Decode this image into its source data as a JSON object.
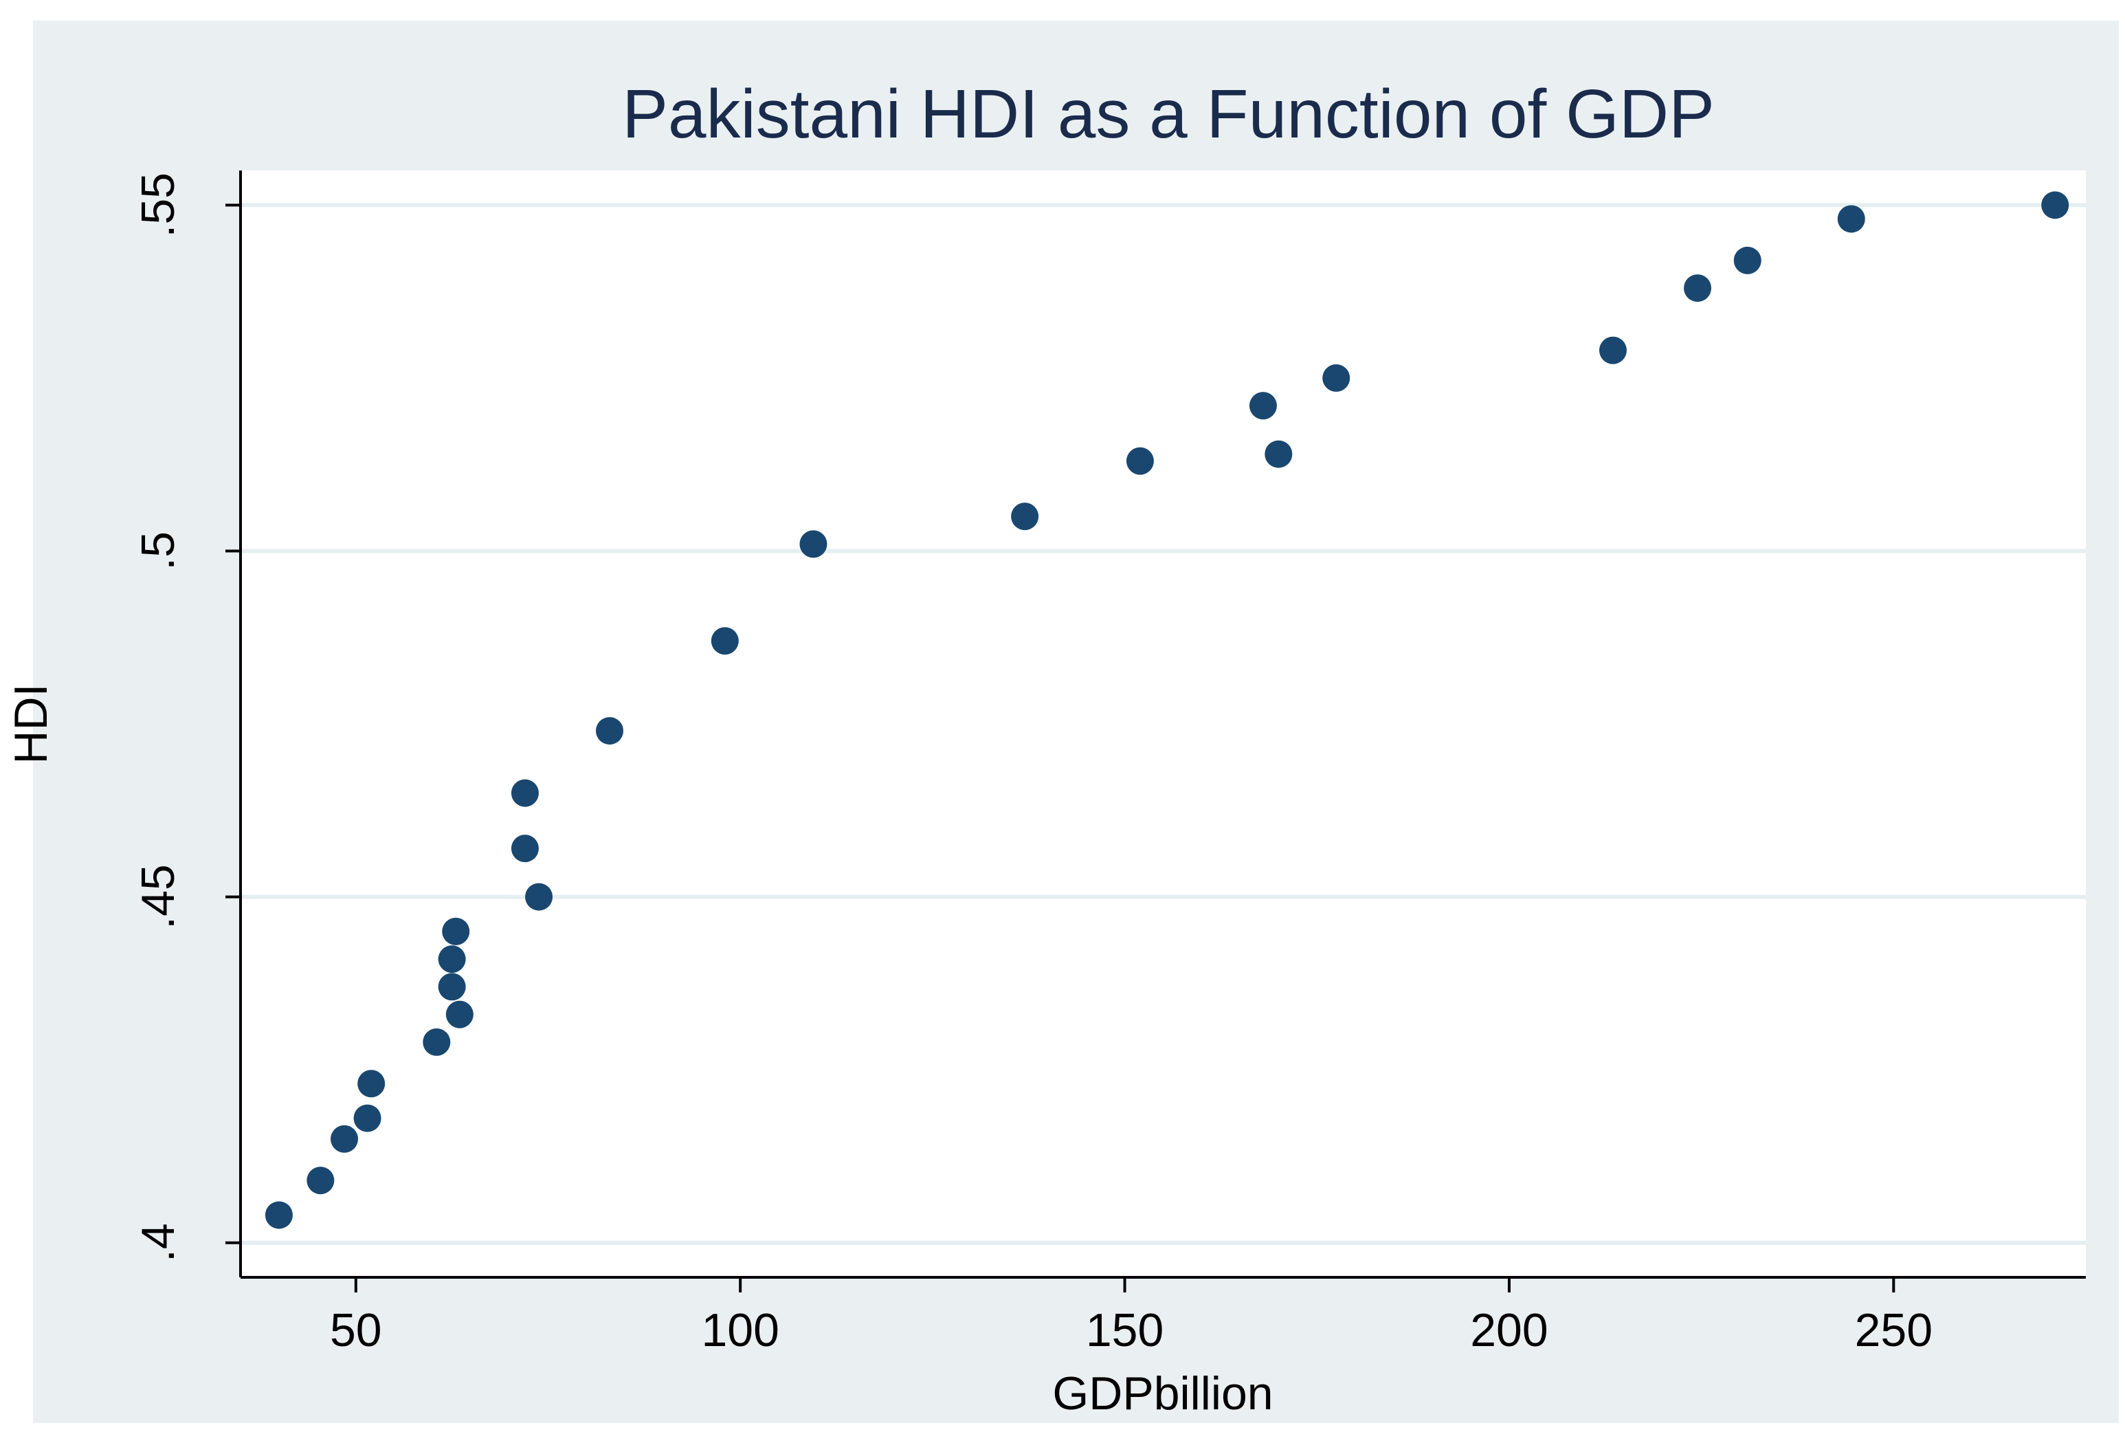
{
  "colors": {
    "frame_background": "#eaf0f2",
    "plot_background": "#ffffff",
    "gridline": "#e5eef0",
    "axis": "#000000",
    "marker": "#1a476f",
    "title_text": "#1a2b4c",
    "text": "#000000"
  },
  "chart_data": {
    "type": "scatter",
    "title": "Pakistani HDI as a Function of GDP",
    "xlabel": "GDPbillion",
    "ylabel": "HDI",
    "xlim": [
      35,
      275
    ],
    "ylim": [
      0.395,
      0.555
    ],
    "x_ticks": [
      50,
      100,
      150,
      200,
      250
    ],
    "x_tick_labels": [
      "50",
      "100",
      "150",
      "200",
      "250"
    ],
    "y_ticks": [
      0.4,
      0.45,
      0.5,
      0.55
    ],
    "y_tick_labels": [
      ".4",
      ".45",
      ".5",
      ".55"
    ],
    "grid": "horizontal",
    "series": [
      {
        "name": "HDI",
        "x": [
          40,
          45.4,
          48.5,
          51.5,
          52,
          60.5,
          62.5,
          62.5,
          63,
          63.5,
          72,
          72,
          73.8,
          83,
          98,
          109.5,
          137,
          152,
          168,
          170,
          177.5,
          213.5,
          224.5,
          231,
          244.5,
          271
        ],
        "y": [
          0.404,
          0.409,
          0.415,
          0.418,
          0.423,
          0.429,
          0.437,
          0.441,
          0.445,
          0.433,
          0.465,
          0.457,
          0.45,
          0.474,
          0.487,
          0.501,
          0.505,
          0.513,
          0.521,
          0.514,
          0.525,
          0.529,
          0.538,
          0.542,
          0.548,
          0.55
        ]
      }
    ]
  }
}
